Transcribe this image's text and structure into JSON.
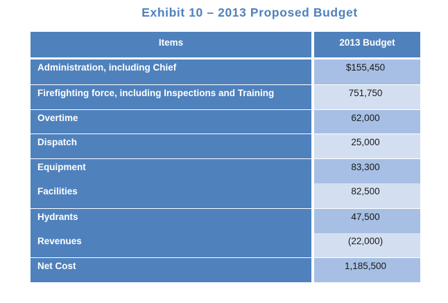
{
  "title": "Exhibit 10 – 2013 Proposed Budget",
  "table": {
    "headers": [
      "Items",
      "2013 Budget"
    ],
    "rows": [
      {
        "item": "Administration, including Chief",
        "budget": "$155,450"
      },
      {
        "item": "Firefighting force, including Inspections and Training",
        "budget": "751,750"
      },
      {
        "item": "Overtime",
        "budget": "62,000"
      },
      {
        "item": "Dispatch",
        "budget": "25,000"
      },
      {
        "item": "Equipment",
        "budget": "83,300"
      },
      {
        "item": "Facilities",
        "budget": "82,500"
      },
      {
        "item": "Hydrants",
        "budget": "47,500"
      },
      {
        "item": "Revenues",
        "budget": "(22,000)"
      },
      {
        "item": "Net Cost",
        "budget": "1,185,500"
      }
    ]
  },
  "colors": {
    "header_blue": "#4f81bd",
    "title_blue": "#4f81bd",
    "budget_dark": "#a7bfe4",
    "budget_light": "#d3dff1"
  }
}
